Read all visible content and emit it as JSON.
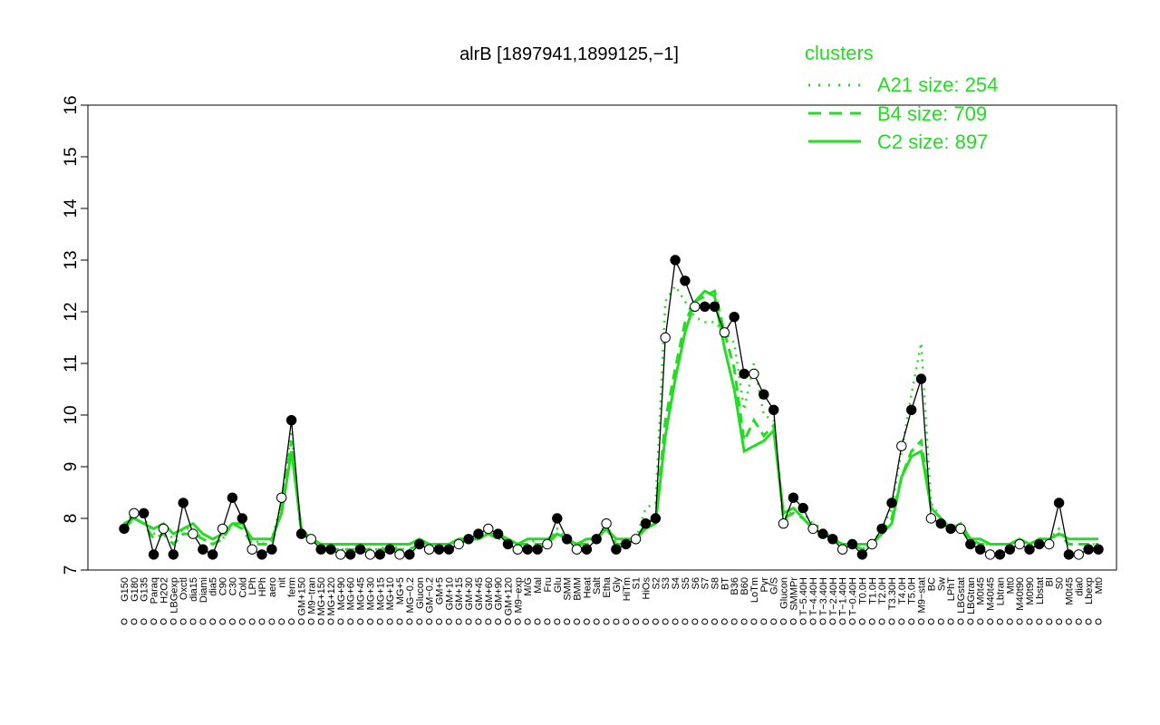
{
  "chart_data": {
    "type": "line",
    "title": "alrB [1897941,1899125,−1]",
    "ylim": [
      7,
      16
    ],
    "yticks": [
      7,
      8,
      9,
      10,
      11,
      12,
      13,
      14,
      15,
      16
    ],
    "grid": false,
    "legend": {
      "placement": "top-right",
      "title": "clusters",
      "entries": [
        {
          "label": "A21 size: 254",
          "style": "dotted"
        },
        {
          "label": "B4 size: 709",
          "style": "dashed"
        },
        {
          "label": "C2 size: 897",
          "style": "solid"
        }
      ]
    },
    "colors": {
      "cluster": "#22dd22",
      "gene": "#000000"
    },
    "categories": [
      "G150",
      "G180",
      "G135",
      "Paraq",
      "H2O2",
      "LBGexp",
      "Oxctl",
      "dia15",
      "Diami",
      "dia5",
      "C90",
      "C30",
      "Cold",
      "LPh",
      "HPh",
      "aero",
      "nit",
      "ferm",
      "GM+150",
      "M9−tran",
      "MG+150",
      "MG+120",
      "MG+90",
      "MG+60",
      "MG+45",
      "MG+30",
      "MG+15",
      "MG+10",
      "MG+5",
      "MG−0.2",
      "Glucon",
      "GM−0.2",
      "GM+5",
      "GM+10",
      "GM+15",
      "GM+30",
      "GM+45",
      "GM+60",
      "GM+90",
      "GM+120",
      "M9−exp",
      "M/G",
      "Mal",
      "Fru",
      "Glu",
      "SMM",
      "BMM",
      "Heat",
      "Salt",
      "Etha",
      "Gly",
      "HiTm",
      "S1",
      "HiOs",
      "S2",
      "S3",
      "S4",
      "S5",
      "S6",
      "S7",
      "S8",
      "BT",
      "B36",
      "B60",
      "LoTm",
      "Pyr",
      "G/S",
      "Glucon",
      "SMMPr",
      "T−5.40H",
      "T−4.40H",
      "T−3.40H",
      "T−2.40H",
      "T−1.40H",
      "T−0.40H",
      "T0.0H",
      "T1.0H",
      "T2.0H",
      "T3.30H",
      "T4.0H",
      "T5.0H",
      "M9−stat",
      "BC",
      "Sw",
      "LPhT",
      "LBGstat",
      "LBGtran",
      "M0t45",
      "M40t45",
      "Lbtran",
      "Mt0",
      "M40t90",
      "M0t90",
      "Lbstat",
      "BI",
      "S0",
      "M0t45",
      "dia0",
      "Lbexp",
      "Mt0"
    ],
    "series": [
      {
        "name": "alrB",
        "values": [
          7.8,
          8.1,
          8.1,
          7.3,
          7.8,
          7.3,
          8.3,
          7.7,
          7.4,
          7.3,
          7.8,
          8.4,
          8.0,
          7.4,
          7.3,
          7.4,
          8.4,
          9.9,
          7.7,
          7.6,
          7.4,
          7.4,
          7.3,
          7.3,
          7.4,
          7.3,
          7.3,
          7.4,
          7.3,
          7.3,
          7.5,
          7.4,
          7.4,
          7.4,
          7.5,
          7.6,
          7.7,
          7.8,
          7.7,
          7.5,
          7.4,
          7.4,
          7.4,
          7.5,
          8.0,
          7.6,
          7.4,
          7.4,
          7.6,
          7.9,
          7.4,
          7.5,
          7.6,
          7.9,
          8.0,
          11.5,
          13.0,
          12.6,
          12.1,
          12.1,
          12.1,
          11.6,
          11.9,
          10.8,
          10.8,
          10.4,
          10.1,
          7.9,
          8.4,
          8.2,
          7.8,
          7.7,
          7.6,
          7.4,
          7.5,
          7.3,
          7.5,
          7.8,
          8.3,
          9.4,
          10.1,
          10.7,
          8.0,
          7.9,
          7.8,
          7.8,
          7.5,
          7.4,
          7.3,
          7.3,
          7.4,
          7.5,
          7.4,
          7.5,
          7.5,
          8.3,
          7.3,
          7.3,
          7.4,
          7.4
        ]
      },
      {
        "name": "A21 size: 254",
        "values": [
          7.9,
          8.1,
          8.0,
          7.7,
          7.8,
          7.6,
          7.8,
          7.8,
          7.6,
          7.5,
          7.6,
          7.9,
          7.9,
          7.6,
          7.5,
          7.6,
          8.3,
          9.7,
          7.7,
          7.6,
          7.5,
          7.4,
          7.4,
          7.4,
          7.5,
          7.4,
          7.4,
          7.5,
          7.4,
          7.4,
          7.5,
          7.5,
          7.5,
          7.5,
          7.6,
          7.6,
          7.7,
          7.7,
          7.6,
          7.6,
          7.5,
          7.5,
          7.6,
          7.6,
          7.8,
          7.6,
          7.5,
          7.5,
          7.6,
          7.9,
          7.5,
          7.6,
          7.6,
          8.2,
          8.3,
          12.2,
          12.5,
          12.2,
          11.9,
          11.8,
          11.8,
          11.6,
          11.4,
          10.1,
          11.0,
          10.0,
          9.9,
          7.9,
          8.2,
          8.1,
          7.9,
          7.8,
          7.6,
          7.5,
          7.5,
          7.4,
          7.5,
          7.8,
          8.2,
          9.3,
          10.4,
          11.4,
          8.3,
          8.0,
          7.8,
          7.8,
          7.6,
          7.5,
          7.5,
          7.5,
          7.5,
          7.6,
          7.5,
          7.6,
          7.6,
          7.8,
          7.5,
          7.5,
          7.5,
          7.5
        ]
      },
      {
        "name": "B4 size: 709",
        "values": [
          7.8,
          8.0,
          7.9,
          7.6,
          7.7,
          7.5,
          7.7,
          7.7,
          7.6,
          7.5,
          7.6,
          7.9,
          7.8,
          7.5,
          7.5,
          7.5,
          8.2,
          9.5,
          7.7,
          7.6,
          7.5,
          7.4,
          7.4,
          7.4,
          7.4,
          7.4,
          7.4,
          7.4,
          7.4,
          7.4,
          7.5,
          7.5,
          7.5,
          7.5,
          7.5,
          7.6,
          7.6,
          7.7,
          7.6,
          7.6,
          7.5,
          7.5,
          7.5,
          7.5,
          7.7,
          7.6,
          7.5,
          7.5,
          7.6,
          7.8,
          7.5,
          7.5,
          7.6,
          7.9,
          8.0,
          9.9,
          10.9,
          11.8,
          12.2,
          12.3,
          12.4,
          11.6,
          10.9,
          9.5,
          9.9,
          9.6,
          9.8,
          8.0,
          8.1,
          8.0,
          7.8,
          7.7,
          7.6,
          7.5,
          7.5,
          7.4,
          7.5,
          7.7,
          8.0,
          8.8,
          9.3,
          9.5,
          8.2,
          8.0,
          7.8,
          7.8,
          7.6,
          7.5,
          7.5,
          7.5,
          7.5,
          7.6,
          7.5,
          7.6,
          7.6,
          7.7,
          7.5,
          7.5,
          7.5,
          7.5
        ]
      },
      {
        "name": "C2 size: 897",
        "values": [
          7.9,
          8.0,
          7.9,
          7.8,
          7.9,
          7.7,
          7.8,
          7.9,
          7.7,
          7.6,
          7.7,
          7.9,
          7.9,
          7.6,
          7.6,
          7.6,
          8.1,
          9.3,
          7.8,
          7.6,
          7.5,
          7.5,
          7.5,
          7.5,
          7.5,
          7.5,
          7.5,
          7.5,
          7.5,
          7.5,
          7.6,
          7.5,
          7.5,
          7.5,
          7.6,
          7.6,
          7.6,
          7.7,
          7.7,
          7.6,
          7.5,
          7.6,
          7.6,
          7.6,
          7.7,
          7.6,
          7.5,
          7.6,
          7.6,
          7.8,
          7.6,
          7.6,
          7.6,
          7.8,
          7.9,
          9.6,
          10.7,
          11.6,
          12.2,
          12.4,
          12.3,
          11.3,
          10.5,
          9.3,
          9.4,
          9.5,
          9.7,
          8.1,
          8.2,
          8.0,
          7.8,
          7.7,
          7.6,
          7.5,
          7.5,
          7.5,
          7.5,
          7.7,
          7.9,
          8.8,
          9.2,
          9.3,
          8.2,
          8.0,
          7.8,
          7.9,
          7.6,
          7.6,
          7.5,
          7.5,
          7.5,
          7.6,
          7.5,
          7.6,
          7.6,
          7.7,
          7.6,
          7.6,
          7.6,
          7.6
        ]
      }
    ]
  }
}
